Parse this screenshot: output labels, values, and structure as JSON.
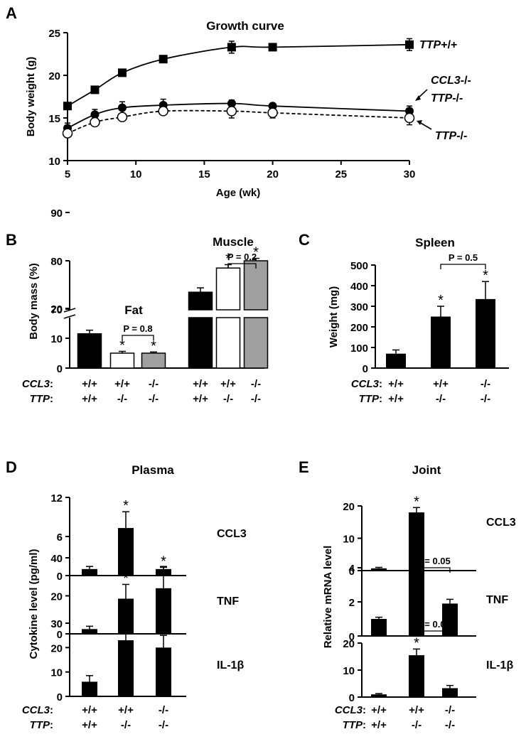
{
  "panel_labels": {
    "a": "A",
    "b": "B",
    "c": "C",
    "d": "D",
    "e": "E"
  },
  "genotype_labels": {
    "ccl3": "CCL3",
    "ttp": "TTP",
    "colon": ":"
  },
  "chart_data": [
    {
      "id": "A",
      "type": "line",
      "title": "Growth curve",
      "xlabel": "Age (wk)",
      "ylabel": "Body weight (g)",
      "xlim": [
        5,
        30
      ],
      "ylim": [
        10,
        25
      ],
      "xticks": [
        "5",
        "10",
        "15",
        "20",
        "25",
        "30"
      ],
      "yticks": [
        "10",
        "15",
        "20",
        "25"
      ],
      "x": [
        5,
        7,
        9,
        12,
        17,
        20,
        30
      ],
      "series": [
        {
          "name_a": "TTP",
          "name_b": "+/+",
          "marker": "square",
          "line": "solid",
          "values": [
            16.4,
            18.3,
            20.3,
            21.9,
            23.3,
            23.3,
            23.6
          ],
          "errors": [
            0.3,
            0.3,
            0.3,
            0.4,
            0.7,
            0.4,
            0.7
          ]
        },
        {
          "name_a": "CCL3",
          "name_b": "-/-",
          "name_c": "TTP",
          "name_d": "-/-",
          "marker": "filled-circle",
          "line": "solid",
          "values": [
            13.8,
            15.4,
            16.2,
            16.5,
            16.7,
            16.4,
            15.8
          ],
          "errors": [
            0.6,
            0.6,
            0.7,
            0.7,
            0.4,
            0.3,
            0.6
          ]
        },
        {
          "name_a": "TTP",
          "name_b": "-/-",
          "marker": "open-circle",
          "line": "dashed",
          "values": [
            13.2,
            14.5,
            15.1,
            15.8,
            15.8,
            15.6,
            15.0
          ],
          "errors": [
            0.4,
            0.4,
            0.3,
            0.3,
            0.8,
            0.6,
            0.8
          ]
        }
      ]
    },
    {
      "id": "B",
      "type": "bar",
      "ylabel": "Body mass (%)",
      "yticks_lower": [
        "0",
        "10",
        "20"
      ],
      "yticks_upper": [
        "70",
        "80",
        "90"
      ],
      "groups": [
        {
          "label": "Fat",
          "values": [
            11.5,
            5.0,
            5.0
          ],
          "errors": [
            1.2,
            0.6,
            0.4
          ],
          "fills": [
            "#000000",
            "#ffffff",
            "#a0a0a0"
          ],
          "stars": [
            false,
            true,
            true
          ],
          "pvalue": "P = 0.8",
          "ccl3": [
            "+/+",
            "+/+",
            "-/-"
          ],
          "ttp": [
            "+/+",
            "-/-",
            "-/-"
          ]
        },
        {
          "label": "Muscle",
          "values": [
            73.5,
            78.5,
            80.0
          ],
          "errors": [
            0.9,
            0.7,
            0.5
          ],
          "fills": [
            "#000000",
            "#ffffff",
            "#a0a0a0"
          ],
          "stars": [
            false,
            true,
            true
          ],
          "pvalue": "P = 0.2",
          "ccl3": [
            "+/+",
            "+/+",
            "-/-"
          ],
          "ttp": [
            "+/+",
            "-/-",
            "-/-"
          ]
        }
      ]
    },
    {
      "id": "C",
      "type": "bar",
      "title": "Spleen",
      "ylabel": "Weight (mg)",
      "ylim": [
        0,
        500
      ],
      "yticks": [
        "0",
        "100",
        "200",
        "300",
        "400",
        "500"
      ],
      "values": [
        70,
        250,
        335
      ],
      "errors": [
        18,
        50,
        85
      ],
      "stars": [
        false,
        true,
        true
      ],
      "pvalue": "P = 0.5",
      "ccl3": [
        "+/+",
        "+/+",
        "-/-"
      ],
      "ttp": [
        "+/+",
        "-/-",
        "-/-"
      ]
    },
    {
      "id": "D",
      "type": "bar",
      "title": "Plasma",
      "ylabel": "Cytokine level (pg/ml)",
      "ccl3": [
        "+/+",
        "+/+",
        "-/-"
      ],
      "ttp": [
        "+/+",
        "-/-",
        "-/-"
      ],
      "subplots": [
        {
          "label": "CCL3",
          "ylim": [
            0,
            12
          ],
          "yticks": [
            "0",
            "6",
            "12"
          ],
          "values": [
            1.0,
            7.3,
            1.0
          ],
          "errors": [
            0.4,
            2.5,
            0.4
          ],
          "stars": [
            false,
            true,
            false
          ]
        },
        {
          "label": "TNF",
          "ylim": [
            0,
            40
          ],
          "yticks": [
            "0",
            "20",
            "40"
          ],
          "values": [
            2.5,
            18.5,
            24.0
          ],
          "errors": [
            1.5,
            7.5,
            11.0
          ],
          "stars": [
            false,
            true,
            true
          ]
        },
        {
          "label": "IL-1β",
          "ylim": [
            0,
            30
          ],
          "yticks": [
            "0",
            "10",
            "20",
            "30"
          ],
          "values": [
            6.0,
            23.0,
            20.0
          ],
          "errors": [
            2.5,
            5.0,
            5.0
          ],
          "stars": [
            false,
            true,
            true
          ]
        }
      ]
    },
    {
      "id": "E",
      "type": "bar",
      "title": "Joint",
      "ylabel": "Relative mRNA level",
      "ccl3": [
        "+/+",
        "+/+",
        "-/-"
      ],
      "ttp": [
        "+/+",
        "-/-",
        "-/-"
      ],
      "subplots": [
        {
          "label": "CCL3",
          "ylim": [
            0,
            20
          ],
          "yticks": [
            "0",
            "10",
            "20"
          ],
          "values": [
            0.7,
            18.0,
            0
          ],
          "errors": [
            0.3,
            1.5,
            0
          ],
          "stars": [
            false,
            true,
            false
          ],
          "pvalue": ""
        },
        {
          "label": "TNF",
          "ylim": [
            0,
            4
          ],
          "yticks": [
            "0",
            "2",
            "4"
          ],
          "values": [
            1.0,
            4.1,
            1.9
          ],
          "errors": [
            0.1,
            0.15,
            0.25
          ],
          "stars": [
            false,
            true,
            false
          ],
          "pvalue": "P = 0.05"
        },
        {
          "label": "IL-1β",
          "ylim": [
            0,
            20
          ],
          "yticks": [
            "0",
            "10",
            "20"
          ],
          "values": [
            1.0,
            15.5,
            3.3
          ],
          "errors": [
            0.3,
            2.3,
            1.0
          ],
          "stars": [
            false,
            true,
            false
          ],
          "pvalue": "P = 0.03"
        }
      ]
    }
  ]
}
